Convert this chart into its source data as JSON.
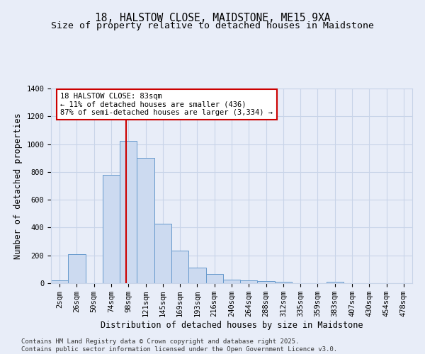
{
  "title": "18, HALSTOW CLOSE, MAIDSTONE, ME15 9XA",
  "subtitle": "Size of property relative to detached houses in Maidstone",
  "xlabel": "Distribution of detached houses by size in Maidstone",
  "ylabel": "Number of detached properties",
  "bin_labels": [
    "2sqm",
    "26sqm",
    "50sqm",
    "74sqm",
    "98sqm",
    "121sqm",
    "145sqm",
    "169sqm",
    "193sqm",
    "216sqm",
    "240sqm",
    "264sqm",
    "288sqm",
    "312sqm",
    "335sqm",
    "359sqm",
    "383sqm",
    "407sqm",
    "430sqm",
    "454sqm",
    "478sqm"
  ],
  "bar_values": [
    20,
    210,
    0,
    780,
    1025,
    900,
    430,
    235,
    110,
    68,
    25,
    20,
    15,
    10,
    0,
    0,
    10,
    0,
    0,
    0,
    0
  ],
  "bar_color": "#ccdaf0",
  "bar_edge_color": "#6699cc",
  "grid_color": "#c8d4e8",
  "bg_color": "#e8edf8",
  "vline_x_index": 3.85,
  "vline_color": "#cc0000",
  "annotation_text": "18 HALSTOW CLOSE: 83sqm\n← 11% of detached houses are smaller (436)\n87% of semi-detached houses are larger (3,334) →",
  "annotation_box_facecolor": "#ffffff",
  "annotation_box_edgecolor": "#cc0000",
  "ylim": [
    0,
    1400
  ],
  "yticks": [
    0,
    200,
    400,
    600,
    800,
    1000,
    1200,
    1400
  ],
  "footer": "Contains HM Land Registry data © Crown copyright and database right 2025.\nContains public sector information licensed under the Open Government Licence v3.0.",
  "title_fontsize": 10.5,
  "subtitle_fontsize": 9.5,
  "ylabel_fontsize": 8.5,
  "xlabel_fontsize": 8.5,
  "tick_fontsize": 7.5,
  "annotation_fontsize": 7.5,
  "footer_fontsize": 6.5
}
